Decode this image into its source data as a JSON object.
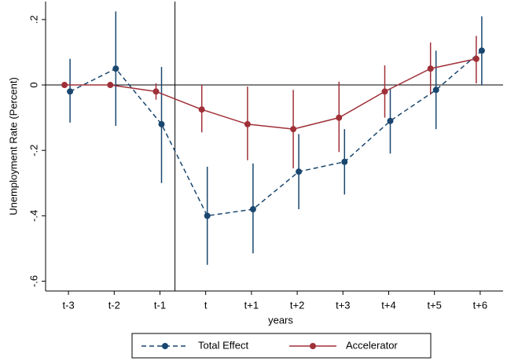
{
  "chart_data": {
    "type": "line",
    "x_label": "years",
    "y_label": "Unemployment Rate (Percent)",
    "categories": [
      "t-3",
      "t-2",
      "t-1",
      "t",
      "t+1",
      "t+2",
      "t+3",
      "t+4",
      "t+5",
      "t+6"
    ],
    "series": [
      {
        "name": "Total Effect",
        "color": "#1a476f",
        "dashed": true,
        "values": [
          -0.02,
          0.05,
          -0.12,
          -0.4,
          -0.38,
          -0.265,
          -0.235,
          -0.11,
          -0.015,
          0.105
        ],
        "lower": [
          -0.115,
          -0.125,
          -0.3,
          -0.55,
          -0.515,
          -0.38,
          -0.335,
          -0.21,
          -0.135,
          0.0
        ],
        "upper": [
          0.08,
          0.225,
          0.055,
          -0.25,
          -0.24,
          -0.15,
          -0.135,
          -0.01,
          0.105,
          0.21
        ]
      },
      {
        "name": "Accelerator",
        "color": "#a03038",
        "dashed": false,
        "values": [
          0,
          0,
          -0.02,
          -0.075,
          -0.12,
          -0.135,
          -0.1,
          -0.02,
          0.05,
          0.08
        ],
        "lower": [
          0,
          0,
          -0.045,
          -0.145,
          -0.23,
          -0.255,
          -0.205,
          -0.1,
          -0.03,
          0.005
        ],
        "upper": [
          0,
          0,
          0.005,
          0,
          -0.005,
          -0.015,
          0.01,
          0.06,
          0.13,
          0.15
        ]
      }
    ],
    "ylim": [
      -0.63,
      0.255
    ],
    "yticks": [
      {
        "value": -0.6,
        "label": "-.6"
      },
      {
        "value": -0.4,
        "label": "-.4"
      },
      {
        "value": -0.2,
        "label": "-.2"
      },
      0,
      {
        "value": 0.2,
        "label": ".2"
      }
    ],
    "reference_y": 0,
    "legend": "bottom"
  }
}
